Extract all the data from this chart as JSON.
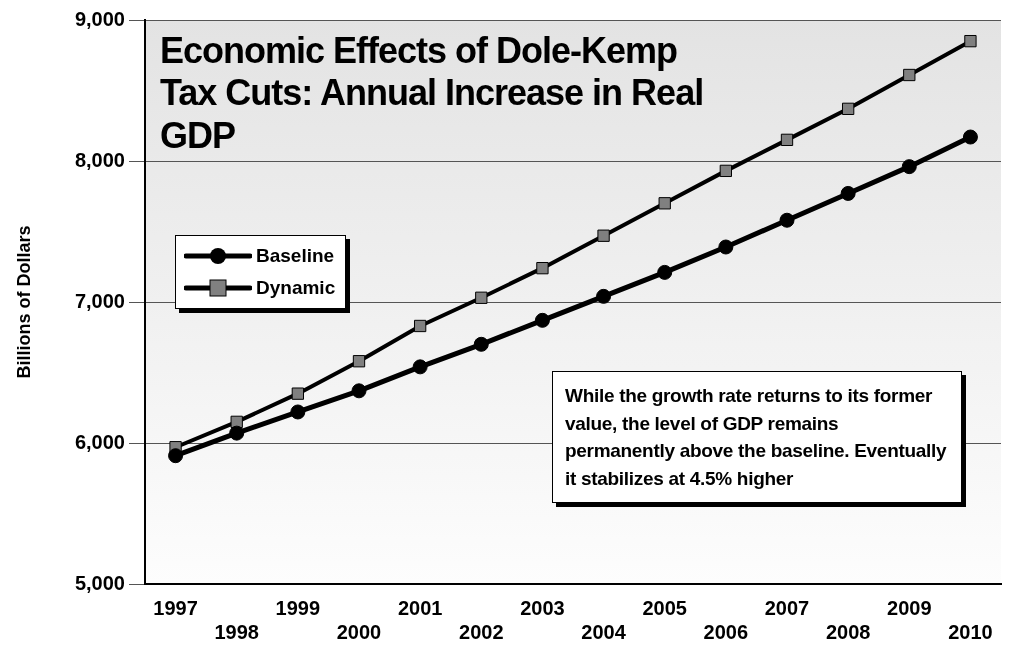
{
  "chart_data": {
    "type": "line",
    "title": "Economic Effects of Dole-Kemp Tax Cuts: Annual Increase in Real GDP",
    "ylabel": "Billions of Dollars",
    "categories": [
      "1997",
      "1998",
      "1999",
      "2000",
      "2001",
      "2002",
      "2003",
      "2004",
      "2005",
      "2006",
      "2007",
      "2008",
      "2009",
      "2010"
    ],
    "series": [
      {
        "name": "Baseline",
        "color": "#000000",
        "marker": "circle",
        "values": [
          5910,
          6070,
          6220,
          6370,
          6540,
          6700,
          6870,
          7040,
          7210,
          7390,
          7580,
          7770,
          7960,
          8170
        ]
      },
      {
        "name": "Dynamic",
        "color": "#808080",
        "marker": "square",
        "values": [
          5970,
          6150,
          6350,
          6580,
          6830,
          7030,
          7240,
          7470,
          7700,
          7930,
          8150,
          8370,
          8610,
          8850
        ]
      }
    ],
    "ylim": [
      5000,
      9000
    ],
    "yticks": [
      {
        "value": 5000,
        "label": "5,000"
      },
      {
        "value": 6000,
        "label": "6,000"
      },
      {
        "value": 7000,
        "label": "7,000"
      },
      {
        "value": 8000,
        "label": "8,000"
      },
      {
        "value": 9000,
        "label": "9,000"
      }
    ],
    "grid": "y",
    "legend": "left",
    "annotations": [
      "While the growth rate returns to its former value, the level of GDP remains permanently above the baseline. Eventually it stabilizes at 4.5% higher"
    ]
  }
}
